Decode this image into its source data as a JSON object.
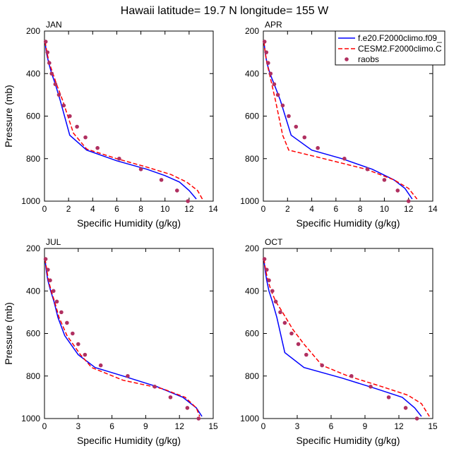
{
  "title": "Hawaii  latitude= 19.7 N longitude= 155 W",
  "legend": {
    "placement": "top-right",
    "entries": [
      {
        "label": "f.e20.F2000climo.f09_",
        "color": "#0000ff",
        "style": "solid"
      },
      {
        "label": "CESM2.F2000climo.C",
        "color": "#ff0000",
        "style": "dashed"
      },
      {
        "label": "raobs",
        "color": "#b03060",
        "style": "dot"
      }
    ]
  },
  "chart_data": [
    {
      "type": "line",
      "panel_label": "JAN",
      "xlabel": "Specific Humidity (g/kg)",
      "ylabel": "Pressure (mb)",
      "xlim": [
        0,
        14
      ],
      "ylim": [
        1000,
        200
      ],
      "xticks": [
        "0",
        "2",
        "4",
        "6",
        "8",
        "10",
        "12",
        "14"
      ],
      "yticks": [
        "200",
        "400",
        "600",
        "800",
        "1000"
      ],
      "series": [
        {
          "name": "f.e20.F2000climo.f09_",
          "color": "#0000ff",
          "x": [
            0.05,
            0.15,
            0.35,
            0.6,
            0.9,
            1.3,
            2.1,
            3.5,
            6.0,
            8.5,
            10.0,
            11.2,
            12.0,
            12.6
          ],
          "y": [
            250,
            300,
            350,
            400,
            450,
            525,
            690,
            760,
            810,
            850,
            880,
            910,
            950,
            990
          ]
        },
        {
          "name": "CESM2.F2000climo.C",
          "color": "#ff0000",
          "x": [
            0.05,
            0.2,
            0.4,
            0.7,
            1.0,
            1.5,
            2.4,
            3.5,
            6.0,
            8.5,
            10.5,
            11.8,
            12.7,
            13.1
          ],
          "y": [
            250,
            300,
            350,
            400,
            450,
            525,
            680,
            755,
            800,
            840,
            875,
            910,
            950,
            990
          ]
        },
        {
          "name": "raobs",
          "color": "#b03060",
          "x": [
            0.1,
            0.25,
            0.4,
            0.6,
            0.9,
            1.2,
            1.6,
            2.1,
            2.7,
            3.4,
            4.4,
            6.2,
            8.0,
            9.7,
            11.0,
            11.9
          ],
          "y": [
            250,
            300,
            350,
            400,
            450,
            500,
            550,
            600,
            650,
            700,
            750,
            800,
            850,
            900,
            950,
            1000
          ]
        }
      ]
    },
    {
      "type": "line",
      "panel_label": "APR",
      "xlabel": "Specific Humidity (g/kg)",
      "ylabel": "",
      "xlim": [
        0,
        14
      ],
      "ylim": [
        1000,
        200
      ],
      "xticks": [
        "0",
        "2",
        "4",
        "6",
        "8",
        "10",
        "12",
        "14"
      ],
      "yticks": [
        "200",
        "400",
        "600",
        "800",
        "1000"
      ],
      "series": [
        {
          "name": "f.e20.F2000climo.f09_",
          "color": "#0000ff",
          "x": [
            0.05,
            0.15,
            0.3,
            0.55,
            0.9,
            1.4,
            2.3,
            4.0,
            6.5,
            9.0,
            10.8,
            11.7,
            12.3
          ],
          "y": [
            250,
            300,
            350,
            400,
            450,
            525,
            690,
            760,
            800,
            850,
            900,
            940,
            990
          ]
        },
        {
          "name": "CESM2.F2000climo.C",
          "color": "#ff0000",
          "x": [
            0.05,
            0.15,
            0.3,
            0.5,
            0.7,
            1.0,
            1.6,
            2.1,
            5.0,
            8.5,
            10.8,
            12.0,
            12.7
          ],
          "y": [
            250,
            300,
            350,
            400,
            450,
            525,
            690,
            760,
            800,
            850,
            900,
            940,
            990
          ]
        },
        {
          "name": "raobs",
          "color": "#b03060",
          "x": [
            0.1,
            0.25,
            0.4,
            0.6,
            0.9,
            1.2,
            1.6,
            2.1,
            2.7,
            3.4,
            4.5,
            6.7,
            8.6,
            10.0,
            11.1,
            12.0
          ],
          "y": [
            250,
            300,
            350,
            400,
            450,
            500,
            550,
            600,
            650,
            700,
            750,
            800,
            850,
            900,
            950,
            1000
          ]
        }
      ]
    },
    {
      "type": "line",
      "panel_label": "JUL",
      "xlabel": "Specific Humidity (g/kg)",
      "ylabel": "Pressure (mb)",
      "xlim": [
        0,
        15
      ],
      "ylim": [
        1000,
        200
      ],
      "xticks": [
        "0",
        "3",
        "6",
        "9",
        "12",
        "15"
      ],
      "yticks": [
        "200",
        "400",
        "600",
        "800",
        "1000"
      ],
      "series": [
        {
          "name": "f.e20.F2000climo.f09_",
          "color": "#0000ff",
          "x": [
            0.05,
            0.15,
            0.3,
            0.55,
            0.85,
            1.2,
            1.8,
            3.0,
            4.5,
            7.0,
            10.0,
            12.3,
            13.5,
            14.0
          ],
          "y": [
            250,
            300,
            350,
            400,
            450,
            525,
            610,
            700,
            760,
            800,
            850,
            900,
            950,
            990
          ]
        },
        {
          "name": "CESM2.F2000climo.C",
          "color": "#ff0000",
          "x": [
            0.05,
            0.2,
            0.35,
            0.6,
            0.9,
            1.3,
            2.0,
            3.2,
            4.2,
            7.0,
            10.5,
            12.5,
            13.5,
            13.8
          ],
          "y": [
            250,
            300,
            350,
            400,
            450,
            525,
            610,
            700,
            760,
            820,
            860,
            900,
            950,
            990
          ]
        },
        {
          "name": "raobs",
          "color": "#b03060",
          "x": [
            0.1,
            0.3,
            0.5,
            0.8,
            1.1,
            1.5,
            2.0,
            2.5,
            3.0,
            3.6,
            5.0,
            7.4,
            9.8,
            11.2,
            12.7,
            13.7
          ],
          "y": [
            250,
            300,
            350,
            400,
            450,
            500,
            550,
            600,
            650,
            700,
            750,
            800,
            850,
            900,
            950,
            1000
          ]
        }
      ]
    },
    {
      "type": "line",
      "panel_label": "OCT",
      "xlabel": "Specific Humidity (g/kg)",
      "ylabel": "",
      "xlim": [
        0,
        15
      ],
      "ylim": [
        1000,
        200
      ],
      "xticks": [
        "0",
        "3",
        "6",
        "9",
        "12",
        "15"
      ],
      "yticks": [
        "200",
        "400",
        "600",
        "800",
        "1000"
      ],
      "series": [
        {
          "name": "f.e20.F2000climo.f09_",
          "color": "#0000ff",
          "x": [
            0.05,
            0.15,
            0.3,
            0.5,
            0.8,
            1.2,
            1.9,
            3.6,
            7.0,
            10.0,
            12.3,
            13.4,
            14.0
          ],
          "y": [
            250,
            300,
            350,
            400,
            450,
            525,
            690,
            760,
            810,
            860,
            900,
            950,
            990
          ]
        },
        {
          "name": "CESM2.F2000climo.C",
          "color": "#ff0000",
          "x": [
            0.05,
            0.2,
            0.4,
            0.7,
            1.1,
            1.7,
            2.6,
            3.6,
            5.2,
            7.5,
            10.5,
            12.8,
            14.0,
            14.7
          ],
          "y": [
            250,
            300,
            350,
            400,
            450,
            500,
            580,
            650,
            750,
            800,
            850,
            890,
            930,
            990
          ]
        },
        {
          "name": "raobs",
          "color": "#b03060",
          "x": [
            0.1,
            0.3,
            0.5,
            0.8,
            1.1,
            1.5,
            1.9,
            2.5,
            3.1,
            3.8,
            5.2,
            7.8,
            9.5,
            11.1,
            12.6,
            13.6
          ],
          "y": [
            250,
            300,
            350,
            400,
            450,
            500,
            550,
            600,
            650,
            700,
            750,
            800,
            850,
            900,
            950,
            1000
          ]
        }
      ]
    }
  ]
}
